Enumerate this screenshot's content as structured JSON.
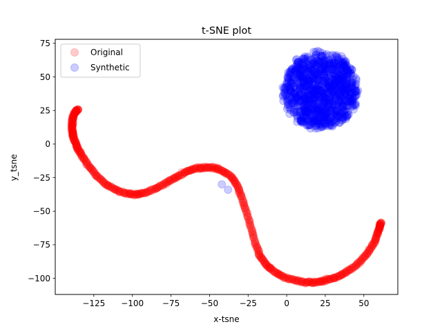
{
  "chart_data": {
    "type": "scatter",
    "title": "t-SNE plot",
    "xlabel": "x-tsne",
    "ylabel": "y_tsne",
    "xlim": [
      -150,
      72
    ],
    "ylim": [
      -112,
      78
    ],
    "xticks": [
      -125,
      -100,
      -75,
      -50,
      -25,
      0,
      25,
      50
    ],
    "yticks": [
      -100,
      -75,
      -50,
      -25,
      0,
      25,
      50,
      75
    ],
    "legend": {
      "placement": "upper left"
    },
    "series": [
      {
        "name": "Original",
        "color": "#ff0000",
        "alpha": 0.2,
        "marker": "circle",
        "curve_path": [
          [
            -135,
            26
          ],
          [
            -137,
            24
          ],
          [
            -138.5,
            20
          ],
          [
            -139,
            15
          ],
          [
            -139,
            10
          ],
          [
            -138.5,
            6
          ],
          [
            -137,
            1
          ],
          [
            -135,
            -4
          ],
          [
            -132,
            -10
          ],
          [
            -128,
            -17
          ],
          [
            -123,
            -24
          ],
          [
            -117,
            -30
          ],
          [
            -111,
            -34
          ],
          [
            -104,
            -37
          ],
          [
            -98,
            -37.5
          ],
          [
            -92,
            -36.5
          ],
          [
            -85,
            -33
          ],
          [
            -78,
            -29
          ],
          [
            -72,
            -25
          ],
          [
            -66,
            -21
          ],
          [
            -60,
            -18.5
          ],
          [
            -54,
            -17.5
          ],
          [
            -48,
            -17.5
          ],
          [
            -42,
            -19.5
          ],
          [
            -36,
            -24
          ],
          [
            -32,
            -31
          ],
          [
            -29,
            -40
          ],
          [
            -26,
            -51
          ],
          [
            -23,
            -63
          ],
          [
            -20,
            -75
          ],
          [
            -17,
            -84
          ],
          [
            -13,
            -90
          ],
          [
            -8,
            -95
          ],
          [
            -2,
            -99
          ],
          [
            5,
            -101.5
          ],
          [
            12,
            -103
          ],
          [
            18,
            -103
          ],
          [
            24,
            -102
          ],
          [
            30,
            -100
          ],
          [
            36,
            -97
          ],
          [
            42,
            -93
          ],
          [
            48,
            -87
          ],
          [
            53,
            -80
          ],
          [
            57,
            -73
          ],
          [
            59,
            -66
          ],
          [
            60.5,
            -61
          ],
          [
            61,
            -58.5
          ]
        ]
      },
      {
        "name": "Synthetic",
        "color": "#0000ff",
        "alpha": 0.2,
        "marker": "circle",
        "cluster": {
          "center": [
            22,
            40
          ],
          "radius_x": 24,
          "radius_y": 28
        },
        "outliers": [
          [
            -42,
            -30
          ],
          [
            -38,
            -34
          ]
        ]
      }
    ]
  }
}
